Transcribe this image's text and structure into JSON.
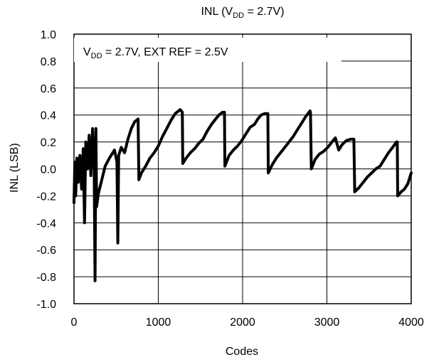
{
  "chart_data": {
    "type": "line",
    "title": {
      "main": "INL (V",
      "sub": "DD",
      "tail": " = 2.7V)"
    },
    "annotation": {
      "main": "V",
      "sub": "DD",
      "tail": " =  2.7V, EXT REF = 2.5V"
    },
    "xlabel": "Codes",
    "ylabel": "INL (LSB)",
    "xlim": [
      0,
      4000
    ],
    "ylim": [
      -1.0,
      1.0
    ],
    "x_ticks": [
      0,
      1000,
      2000,
      3000,
      4000
    ],
    "y_ticks": [
      1.0,
      0.8,
      0.6,
      0.4,
      0.2,
      0.0,
      -0.2,
      -0.4,
      -0.6,
      -0.8,
      -1.0
    ],
    "x_tick_labels": [
      "0",
      "1000",
      "2000",
      "3000",
      "4000"
    ],
    "y_tick_labels": [
      "1.0",
      "0.8",
      "0.6",
      "0.4",
      "0.2",
      "0.0",
      "-0.2",
      "-0.4",
      "-0.6",
      "-0.8",
      "-1.0"
    ],
    "grid": true,
    "series": [
      {
        "color": "#000000",
        "points": [
          [
            0,
            -0.25
          ],
          [
            10,
            0.05
          ],
          [
            20,
            -0.2
          ],
          [
            35,
            0.08
          ],
          [
            50,
            -0.1
          ],
          [
            70,
            0.1
          ],
          [
            90,
            -0.15
          ],
          [
            110,
            0.15
          ],
          [
            125,
            -0.4
          ],
          [
            140,
            0.2
          ],
          [
            160,
            0.0
          ],
          [
            180,
            0.25
          ],
          [
            200,
            -0.05
          ],
          [
            220,
            0.3
          ],
          [
            240,
            -0.02
          ],
          [
            250,
            -0.83
          ],
          [
            260,
            0.3
          ],
          [
            268,
            -0.28
          ],
          [
            290,
            -0.18
          ],
          [
            330,
            -0.08
          ],
          [
            370,
            0.02
          ],
          [
            420,
            0.08
          ],
          [
            480,
            0.14
          ],
          [
            510,
            0.05
          ],
          [
            520,
            -0.55
          ],
          [
            530,
            0.1
          ],
          [
            560,
            0.16
          ],
          [
            600,
            0.12
          ],
          [
            640,
            0.22
          ],
          [
            680,
            0.3
          ],
          [
            720,
            0.35
          ],
          [
            760,
            0.37
          ],
          [
            770,
            -0.08
          ],
          [
            800,
            -0.03
          ],
          [
            850,
            0.02
          ],
          [
            900,
            0.08
          ],
          [
            950,
            0.12
          ],
          [
            1000,
            0.17
          ],
          [
            1050,
            0.24
          ],
          [
            1100,
            0.3
          ],
          [
            1150,
            0.36
          ],
          [
            1200,
            0.41
          ],
          [
            1260,
            0.44
          ],
          [
            1285,
            0.42
          ],
          [
            1290,
            0.04
          ],
          [
            1330,
            0.08
          ],
          [
            1380,
            0.12
          ],
          [
            1430,
            0.15
          ],
          [
            1480,
            0.19
          ],
          [
            1530,
            0.22
          ],
          [
            1580,
            0.28
          ],
          [
            1630,
            0.33
          ],
          [
            1680,
            0.37
          ],
          [
            1720,
            0.4
          ],
          [
            1760,
            0.42
          ],
          [
            1785,
            0.42
          ],
          [
            1790,
            0.02
          ],
          [
            1840,
            0.1
          ],
          [
            1890,
            0.14
          ],
          [
            1940,
            0.17
          ],
          [
            1990,
            0.21
          ],
          [
            2040,
            0.26
          ],
          [
            2090,
            0.31
          ],
          [
            2140,
            0.33
          ],
          [
            2180,
            0.37
          ],
          [
            2220,
            0.4
          ],
          [
            2260,
            0.41
          ],
          [
            2300,
            0.41
          ],
          [
            2305,
            -0.03
          ],
          [
            2350,
            0.03
          ],
          [
            2400,
            0.08
          ],
          [
            2450,
            0.12
          ],
          [
            2500,
            0.16
          ],
          [
            2550,
            0.2
          ],
          [
            2600,
            0.24
          ],
          [
            2650,
            0.29
          ],
          [
            2700,
            0.34
          ],
          [
            2750,
            0.39
          ],
          [
            2800,
            0.43
          ],
          [
            2805,
            0.42
          ],
          [
            2815,
            0.0
          ],
          [
            2860,
            0.07
          ],
          [
            2910,
            0.11
          ],
          [
            2960,
            0.13
          ],
          [
            3010,
            0.16
          ],
          [
            3060,
            0.2
          ],
          [
            3100,
            0.23
          ],
          [
            3140,
            0.14
          ],
          [
            3180,
            0.18
          ],
          [
            3230,
            0.21
          ],
          [
            3280,
            0.22
          ],
          [
            3320,
            0.22
          ],
          [
            3330,
            -0.17
          ],
          [
            3380,
            -0.14
          ],
          [
            3430,
            -0.1
          ],
          [
            3480,
            -0.06
          ],
          [
            3530,
            -0.03
          ],
          [
            3580,
            0.0
          ],
          [
            3630,
            0.02
          ],
          [
            3680,
            0.07
          ],
          [
            3730,
            0.12
          ],
          [
            3780,
            0.16
          ],
          [
            3825,
            0.2
          ],
          [
            3835,
            0.2
          ],
          [
            3840,
            -0.2
          ],
          [
            3880,
            -0.17
          ],
          [
            3920,
            -0.15
          ],
          [
            3960,
            -0.11
          ],
          [
            3990,
            -0.05
          ],
          [
            4000,
            -0.03
          ]
        ]
      }
    ]
  }
}
